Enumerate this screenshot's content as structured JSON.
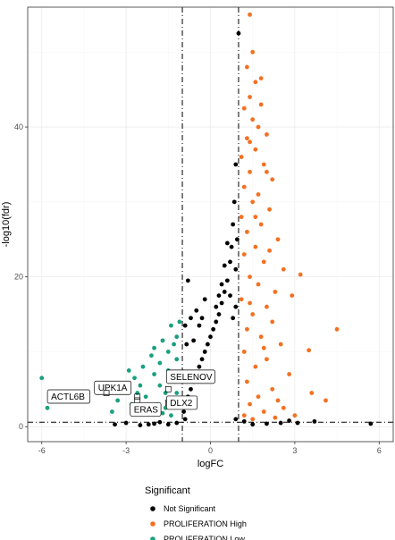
{
  "chart_data": {
    "type": "scatter",
    "title": "",
    "xlabel": "logFC",
    "ylabel": "-log10(fdr)",
    "xlim": [
      -6.5,
      6.5
    ],
    "ylim": [
      -2,
      56
    ],
    "x_ticks": [
      -6,
      -3,
      0,
      3,
      6
    ],
    "y_ticks": [
      0,
      20,
      40
    ],
    "grid": true,
    "vlines": [
      -1,
      1
    ],
    "hline": 0.6,
    "legend_position": "bottom",
    "legend_title": "Significant",
    "series": [
      {
        "name": "Not Significant",
        "color": "#000000",
        "points": [
          [
            1.0,
            52.5
          ],
          [
            0.9,
            35.0
          ],
          [
            0.85,
            30.0
          ],
          [
            0.8,
            27.0
          ],
          [
            0.75,
            24.0
          ],
          [
            0.7,
            22.0
          ],
          [
            0.6,
            19.5
          ],
          [
            0.5,
            18.0
          ],
          [
            0.4,
            16.5
          ],
          [
            0.3,
            15.0
          ],
          [
            0.2,
            14.0
          ],
          [
            0.1,
            13.0
          ],
          [
            -0.1,
            11.0
          ],
          [
            -0.2,
            10.0
          ],
          [
            -0.3,
            9.0
          ],
          [
            -0.4,
            8.0
          ],
          [
            -0.5,
            7.0
          ],
          [
            -0.6,
            6.0
          ],
          [
            -0.7,
            5.0
          ],
          [
            -0.8,
            4.0
          ],
          [
            -0.9,
            3.0
          ],
          [
            -0.95,
            2.0
          ],
          [
            -0.9,
            1.0
          ],
          [
            0.9,
            1.0
          ],
          [
            -0.85,
            11.0
          ],
          [
            -0.8,
            19.5
          ],
          [
            -0.9,
            13.5
          ],
          [
            -0.7,
            14.5
          ],
          [
            -0.5,
            15.5
          ],
          [
            -0.4,
            13.5
          ],
          [
            0.3,
            17.5
          ],
          [
            0.2,
            16.0
          ],
          [
            0.7,
            17.5
          ],
          [
            0.8,
            14.5
          ],
          [
            0.95,
            25.0
          ],
          [
            0.9,
            21.0
          ],
          [
            0.6,
            24.5
          ],
          [
            0.5,
            21.5
          ],
          [
            -0.2,
            17.0
          ],
          [
            -0.6,
            11.5
          ],
          [
            -1.5,
            0.3
          ],
          [
            -2.0,
            0.4
          ],
          [
            -2.5,
            0.2
          ],
          [
            -3.0,
            0.5
          ],
          [
            -3.4,
            0.3
          ],
          [
            -1.2,
            0.5
          ],
          [
            1.5,
            0.3
          ],
          [
            2.0,
            0.4
          ],
          [
            2.5,
            0.5
          ],
          [
            2.8,
            0.8
          ],
          [
            3.1,
            0.5
          ],
          [
            3.7,
            0.7
          ],
          [
            5.7,
            0.4
          ],
          [
            1.2,
            0.7
          ],
          [
            -1.8,
            0.6
          ],
          [
            -2.2,
            0.3
          ],
          [
            0.0,
            12.0
          ],
          [
            0.4,
            19.0
          ],
          [
            0.9,
            16.0
          ],
          [
            -0.3,
            14.5
          ]
        ]
      },
      {
        "name": "PROLIFERATION High",
        "color": "#F37022",
        "points": [
          [
            1.4,
            55.0
          ],
          [
            1.5,
            50.0
          ],
          [
            1.3,
            48.0
          ],
          [
            1.6,
            46.0
          ],
          [
            1.4,
            44.0
          ],
          [
            1.8,
            43.0
          ],
          [
            1.2,
            42.5
          ],
          [
            1.5,
            41.0
          ],
          [
            1.7,
            40.0
          ],
          [
            2.0,
            39.0
          ],
          [
            1.3,
            38.5
          ],
          [
            1.6,
            37.0
          ],
          [
            1.1,
            36.0
          ],
          [
            1.9,
            35.0
          ],
          [
            1.4,
            34.0
          ],
          [
            2.2,
            33.0
          ],
          [
            1.2,
            32.0
          ],
          [
            1.7,
            31.0
          ],
          [
            1.5,
            30.0
          ],
          [
            2.1,
            29.0
          ],
          [
            1.1,
            28.0
          ],
          [
            1.8,
            27.0
          ],
          [
            1.3,
            26.0
          ],
          [
            2.4,
            25.0
          ],
          [
            1.6,
            24.0
          ],
          [
            1.2,
            23.0
          ],
          [
            1.9,
            22.0
          ],
          [
            2.6,
            21.0
          ],
          [
            1.4,
            20.0
          ],
          [
            3.2,
            20.3
          ],
          [
            1.7,
            19.0
          ],
          [
            2.3,
            18.0
          ],
          [
            1.1,
            17.0
          ],
          [
            2.0,
            16.0
          ],
          [
            2.9,
            17.5
          ],
          [
            1.5,
            15.0
          ],
          [
            2.2,
            14.0
          ],
          [
            1.3,
            13.0
          ],
          [
            4.5,
            13.0
          ],
          [
            1.8,
            12.0
          ],
          [
            2.5,
            11.0
          ],
          [
            1.2,
            10.0
          ],
          [
            3.5,
            10.2
          ],
          [
            2.0,
            9.0
          ],
          [
            1.6,
            8.0
          ],
          [
            2.8,
            7.0
          ],
          [
            1.3,
            6.0
          ],
          [
            2.2,
            5.0
          ],
          [
            3.6,
            4.5
          ],
          [
            1.7,
            4.0
          ],
          [
            2.4,
            3.5
          ],
          [
            4.1,
            3.5
          ],
          [
            1.4,
            3.0
          ],
          [
            2.6,
            2.5
          ],
          [
            1.9,
            2.0
          ],
          [
            3.0,
            1.5
          ],
          [
            1.2,
            1.5
          ],
          [
            1.5,
            1.0
          ],
          [
            2.3,
            1.2
          ],
          [
            1.8,
            46.5
          ],
          [
            1.4,
            38.0
          ],
          [
            2.0,
            34.0
          ],
          [
            1.6,
            28.0
          ],
          [
            2.1,
            23.5
          ],
          [
            1.4,
            16.5
          ],
          [
            1.9,
            10.5
          ]
        ]
      },
      {
        "name": "PROLIFERATION Low",
        "color": "#1AA080",
        "points": [
          [
            -6.0,
            6.5
          ],
          [
            -5.8,
            2.5
          ],
          [
            -3.7,
            4.5
          ],
          [
            -2.3,
            4.0
          ],
          [
            -2.5,
            5.5
          ],
          [
            -2.0,
            7.0
          ],
          [
            -1.8,
            8.5
          ],
          [
            -1.5,
            10.0
          ],
          [
            -1.2,
            12.0
          ],
          [
            -1.1,
            14.0
          ],
          [
            -1.4,
            13.5
          ],
          [
            -1.7,
            11.5
          ],
          [
            -2.1,
            9.5
          ],
          [
            -2.4,
            8.0
          ],
          [
            -2.7,
            6.5
          ],
          [
            -3.0,
            5.0
          ],
          [
            -3.3,
            3.5
          ],
          [
            -1.3,
            6.0
          ],
          [
            -1.6,
            4.5
          ],
          [
            -1.9,
            3.0
          ],
          [
            -2.2,
            2.0
          ],
          [
            -1.4,
            1.5
          ],
          [
            -1.1,
            3.0
          ],
          [
            -1.2,
            9.0
          ],
          [
            -1.5,
            7.5
          ],
          [
            -1.8,
            5.5
          ],
          [
            -2.8,
            3.0
          ],
          [
            -3.5,
            2.0
          ],
          [
            -1.3,
            11.0
          ],
          [
            -1.1,
            7.0
          ],
          [
            -1.6,
            2.5
          ],
          [
            -2.6,
            4.5
          ],
          [
            -2.9,
            7.5
          ],
          [
            -2.0,
            10.5
          ],
          [
            -1.2,
            4.5
          ],
          [
            -1.7,
            1.8
          ]
        ]
      }
    ],
    "labels": [
      {
        "text": "SELENOV",
        "x": -1.5,
        "y": 5.0
      },
      {
        "text": "UPK1A",
        "x": -2.6,
        "y": 4.0
      },
      {
        "text": "DLX2",
        "x": -1.5,
        "y": 3.2
      },
      {
        "text": "ACTL6B",
        "x": -3.7,
        "y": 4.5
      },
      {
        "text": "ERAS",
        "x": -2.6,
        "y": 3.5
      }
    ]
  }
}
